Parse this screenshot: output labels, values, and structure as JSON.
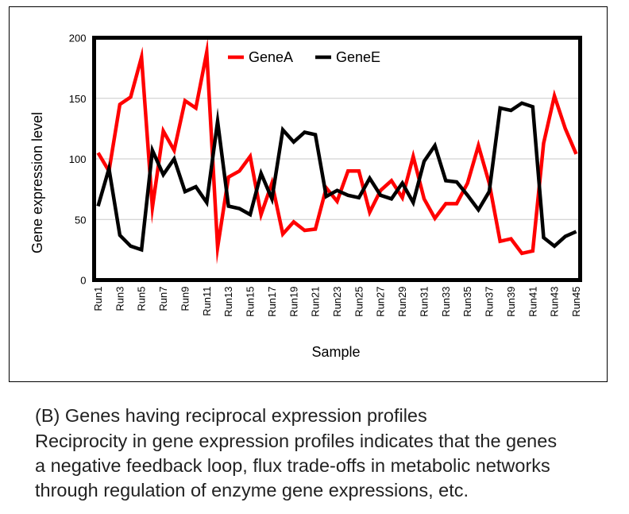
{
  "chart_data": {
    "type": "line",
    "xlabel": "Sample",
    "ylabel": "Gene expression level",
    "ylim": [
      0,
      200
    ],
    "yticks": [
      0,
      50,
      100,
      150,
      200
    ],
    "grid": "horizontal",
    "legend_position": "top-center",
    "categories": [
      "Run1",
      "Run2",
      "Run3",
      "Run4",
      "Run5",
      "Run6",
      "Run7",
      "Run8",
      "Run9",
      "Run10",
      "Run11",
      "Run12",
      "Run13",
      "Run14",
      "Run15",
      "Run16",
      "Run17",
      "Run18",
      "Run19",
      "Run20",
      "Run21",
      "Run22",
      "Run23",
      "Run24",
      "Run25",
      "Run26",
      "Run27",
      "Run28",
      "Run29",
      "Run30",
      "Run31",
      "Run32",
      "Run33",
      "Run34",
      "Run35",
      "Run36",
      "Run37",
      "Run38",
      "Run39",
      "Run40",
      "Run41",
      "Run42",
      "Run43",
      "Run44",
      "Run45"
    ],
    "tick_labels": [
      "Run1",
      "Run3",
      "Run5",
      "Run7",
      "Run9",
      "Run11",
      "Run13",
      "Run15",
      "Run17",
      "Run19",
      "Run21",
      "Run23",
      "Run25",
      "Run27",
      "Run29",
      "Run31",
      "Run33",
      "Run35",
      "Run37",
      "Run39",
      "Run41",
      "Run43",
      "Run45"
    ],
    "series": [
      {
        "name": "GeneA",
        "color": "#ff0000",
        "values": [
          105,
          90,
          145,
          151,
          184,
          60,
          123,
          107,
          148,
          142,
          188,
          27,
          85,
          90,
          102,
          54,
          80,
          38,
          48,
          41,
          42,
          76,
          65,
          90,
          90,
          56,
          74,
          82,
          68,
          102,
          67,
          51,
          63,
          63,
          80,
          111,
          80,
          32,
          34,
          22,
          24,
          113,
          152,
          125,
          104
        ]
      },
      {
        "name": "GeneE",
        "color": "#000000",
        "values": [
          61,
          92,
          37,
          28,
          25,
          107,
          87,
          100,
          73,
          77,
          64,
          131,
          61,
          59,
          54,
          88,
          67,
          124,
          114,
          122,
          120,
          69,
          74,
          70,
          68,
          84,
          70,
          67,
          80,
          64,
          98,
          111,
          82,
          81,
          70,
          58,
          73,
          142,
          140,
          146,
          143,
          35,
          28,
          36,
          40
        ]
      }
    ]
  },
  "caption": {
    "title": "(B) Genes having reciprocal expression profiles",
    "lines": [
      "Reciprocity in gene expression profiles indicates that the genes",
      "a negative feedback loop, flux trade-offs in metabolic networks",
      "through regulation of enzyme gene expressions, etc."
    ]
  }
}
